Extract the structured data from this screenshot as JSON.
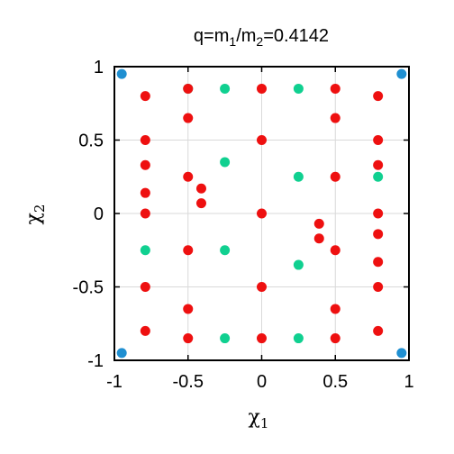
{
  "chart_data": {
    "type": "scatter",
    "title_parts": [
      "q=m",
      "1",
      "/m",
      "2",
      "=0.4142"
    ],
    "xlabel_parts": [
      "χ",
      "1"
    ],
    "ylabel_parts": [
      "χ",
      "2"
    ],
    "xlim": [
      -1,
      1
    ],
    "ylim": [
      -1,
      1
    ],
    "grid": true,
    "xticks": [
      -1,
      -0.5,
      0,
      0.5,
      1
    ],
    "yticks": [
      -1,
      -0.5,
      0,
      0.5,
      1
    ],
    "xtick_labels": [
      "-1",
      "-0.5",
      "0",
      "0.5",
      "1"
    ],
    "ytick_labels": [
      "-1",
      "-0.5",
      "0",
      "0.5",
      "1"
    ],
    "series": [
      {
        "color": "#1f8fd1",
        "points": [
          [
            -0.95,
            0.95
          ],
          [
            0.95,
            0.95
          ],
          [
            -0.95,
            -0.95
          ],
          [
            0.95,
            -0.95
          ]
        ]
      },
      {
        "color": "#10d090",
        "points": [
          [
            -0.5,
            0.85
          ],
          [
            -0.25,
            0.85
          ],
          [
            0.25,
            0.85
          ],
          [
            -0.25,
            0.35
          ],
          [
            0.25,
            0.25
          ],
          [
            0.79,
            0.25
          ],
          [
            -0.79,
            -0.25
          ],
          [
            -0.25,
            -0.25
          ],
          [
            0.25,
            -0.35
          ],
          [
            -0.25,
            -0.85
          ],
          [
            0.25,
            -0.85
          ]
        ]
      },
      {
        "color": "#ee1010",
        "points": [
          [
            -0.79,
            0.8
          ],
          [
            -0.5,
            0.85
          ],
          [
            0,
            0.85
          ],
          [
            0.5,
            0.85
          ],
          [
            0.79,
            0.8
          ],
          [
            -0.5,
            0.65
          ],
          [
            0.5,
            0.65
          ],
          [
            -0.79,
            0.5
          ],
          [
            0,
            0.5
          ],
          [
            0.79,
            0.5
          ],
          [
            -0.79,
            0.33
          ],
          [
            0.79,
            0.33
          ],
          [
            -0.5,
            0.25
          ],
          [
            0.5,
            0.25
          ],
          [
            -0.41,
            0.17
          ],
          [
            -0.79,
            0.14
          ],
          [
            -0.41,
            0.07
          ],
          [
            -0.79,
            0
          ],
          [
            0,
            0
          ],
          [
            0.79,
            0
          ],
          [
            0.39,
            -0.07
          ],
          [
            0.79,
            -0.14
          ],
          [
            0.39,
            -0.17
          ],
          [
            -0.5,
            -0.25
          ],
          [
            0.5,
            -0.25
          ],
          [
            0.79,
            -0.33
          ],
          [
            -0.79,
            -0.5
          ],
          [
            0,
            -0.5
          ],
          [
            0.79,
            -0.5
          ],
          [
            -0.5,
            -0.65
          ],
          [
            0.5,
            -0.65
          ],
          [
            -0.79,
            -0.8
          ],
          [
            0.79,
            -0.8
          ],
          [
            -0.5,
            -0.85
          ],
          [
            0,
            -0.85
          ],
          [
            0.5,
            -0.85
          ]
        ]
      }
    ]
  }
}
